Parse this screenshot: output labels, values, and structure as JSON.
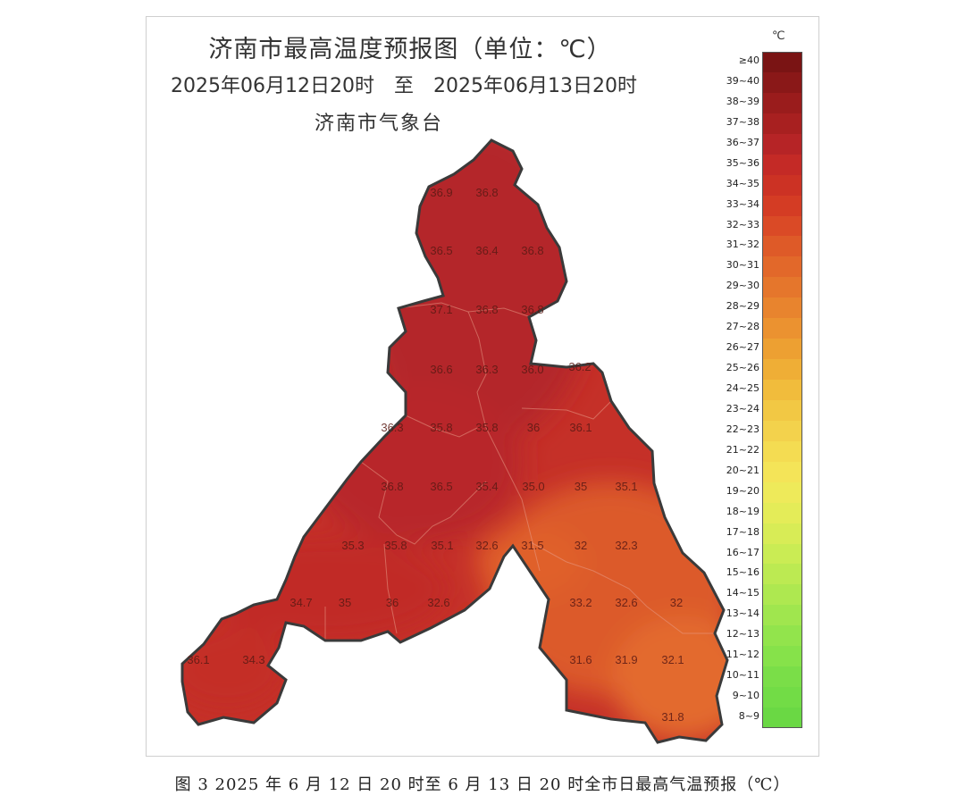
{
  "map": {
    "title": "济南市最高温度预报图（单位：℃）",
    "period": "2025年06月12日20时　至　2025年06月13日20时",
    "issuer": "济南市气象台",
    "colors": {
      "hot": "#b8282a",
      "warm": "#d9452c",
      "mild": "#e0652e",
      "outline": "#3a3a3a"
    },
    "values": [
      "36.9",
      "36.8",
      "36.5",
      "36.4",
      "36.8",
      "37.1",
      "36.8",
      "36.8",
      "36.6",
      "36.3",
      "36.0",
      "36.2",
      "36.3",
      "35.8",
      "35.8",
      "36",
      "36.1",
      "36.8",
      "36.5",
      "35.4",
      "35.0",
      "35",
      "35.1",
      "35.3",
      "35.8",
      "35.1",
      "32.6",
      "31.5",
      "32",
      "32.3",
      "34.7",
      "35",
      "36",
      "32.6",
      "33.2",
      "32.6",
      "32",
      "36.1",
      "34.3",
      "31.6",
      "31.9",
      "32.1",
      "31.8"
    ]
  },
  "legend": {
    "unit": "℃",
    "items": [
      {
        "label": "≥40",
        "color": "#7a1414"
      },
      {
        "label": "39~40",
        "color": "#8a1818"
      },
      {
        "label": "38~39",
        "color": "#9a1c1c"
      },
      {
        "label": "37~38",
        "color": "#a82020"
      },
      {
        "label": "36~37",
        "color": "#b62426"
      },
      {
        "label": "35~36",
        "color": "#c42a26"
      },
      {
        "label": "34~35",
        "color": "#cc3224"
      },
      {
        "label": "33~34",
        "color": "#d43c24"
      },
      {
        "label": "32~33",
        "color": "#da4a26"
      },
      {
        "label": "31~32",
        "color": "#de5a28"
      },
      {
        "label": "30~31",
        "color": "#e2682a"
      },
      {
        "label": "29~30",
        "color": "#e5762c"
      },
      {
        "label": "28~29",
        "color": "#e8842e"
      },
      {
        "label": "27~28",
        "color": "#eb9230"
      },
      {
        "label": "26~27",
        "color": "#eda032"
      },
      {
        "label": "25~26",
        "color": "#efae36"
      },
      {
        "label": "24~25",
        "color": "#f1bc3c"
      },
      {
        "label": "23~24",
        "color": "#f2c844"
      },
      {
        "label": "22~23",
        "color": "#f3d24c"
      },
      {
        "label": "21~22",
        "color": "#f4dc52"
      },
      {
        "label": "20~21",
        "color": "#f4e458"
      },
      {
        "label": "19~20",
        "color": "#eeea5a"
      },
      {
        "label": "18~19",
        "color": "#e4ec58"
      },
      {
        "label": "17~18",
        "color": "#d8ec56"
      },
      {
        "label": "16~17",
        "color": "#caec54"
      },
      {
        "label": "15~16",
        "color": "#bcea52"
      },
      {
        "label": "14~15",
        "color": "#aee850"
      },
      {
        "label": "13~14",
        "color": "#a0e64e"
      },
      {
        "label": "12~13",
        "color": "#92e44c"
      },
      {
        "label": "11~12",
        "color": "#86e24a"
      },
      {
        "label": "10~11",
        "color": "#7ade48"
      },
      {
        "label": "9~10",
        "color": "#72dc46"
      },
      {
        "label": "8~9",
        "color": "#6ad844"
      }
    ]
  },
  "caption": "图 3 2025 年 6 月 12 日 20 时至 6 月 13 日 20 时全市日最高气温预报（℃）"
}
